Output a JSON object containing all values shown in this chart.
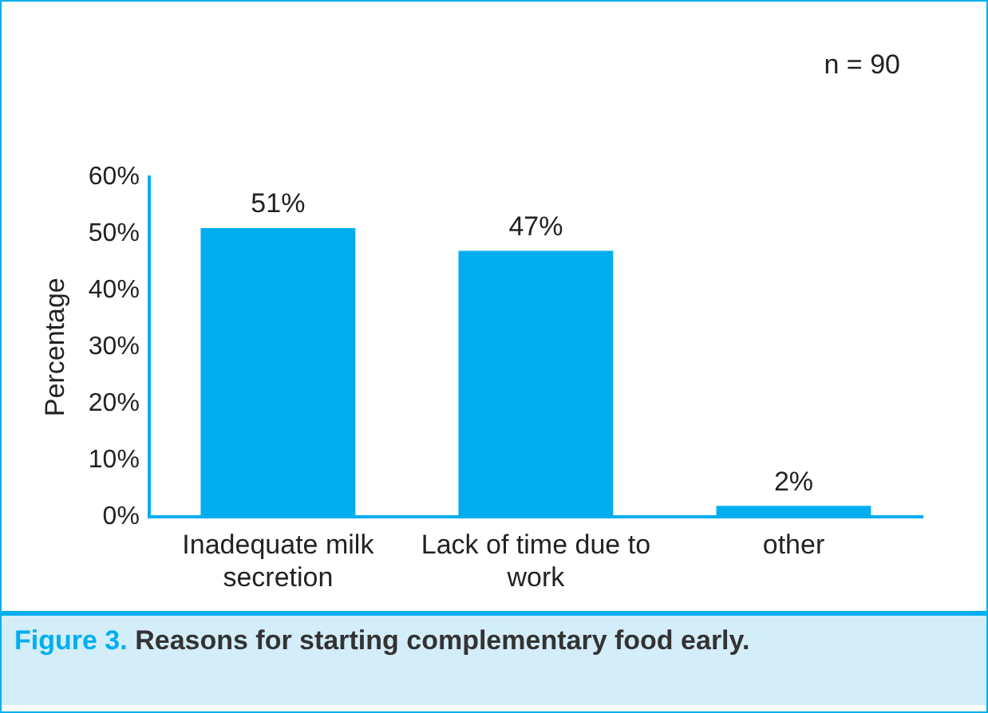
{
  "chart_data": {
    "type": "bar",
    "title": "Figure 3. Reasons for starting complementary food early.",
    "ylabel": "Percentage",
    "categories": [
      "Inadequate milk secretion",
      "Lack of time due to work",
      "other"
    ],
    "values": [
      51,
      47,
      2
    ],
    "value_labels": [
      "51%",
      "47%",
      "2%"
    ],
    "color": "#00aeef",
    "ylim": [
      0,
      60
    ],
    "yticks": [
      {
        "value": 0,
        "label": "0%"
      },
      {
        "value": 10,
        "label": "10%"
      },
      {
        "value": 20,
        "label": "20%"
      },
      {
        "value": 30,
        "label": "30%"
      },
      {
        "value": 40,
        "label": "40%"
      },
      {
        "value": 50,
        "label": "50%"
      },
      {
        "value": 60,
        "label": "60%"
      }
    ],
    "grid": false,
    "legend": false,
    "annotations": [
      "n = 90"
    ]
  }
}
